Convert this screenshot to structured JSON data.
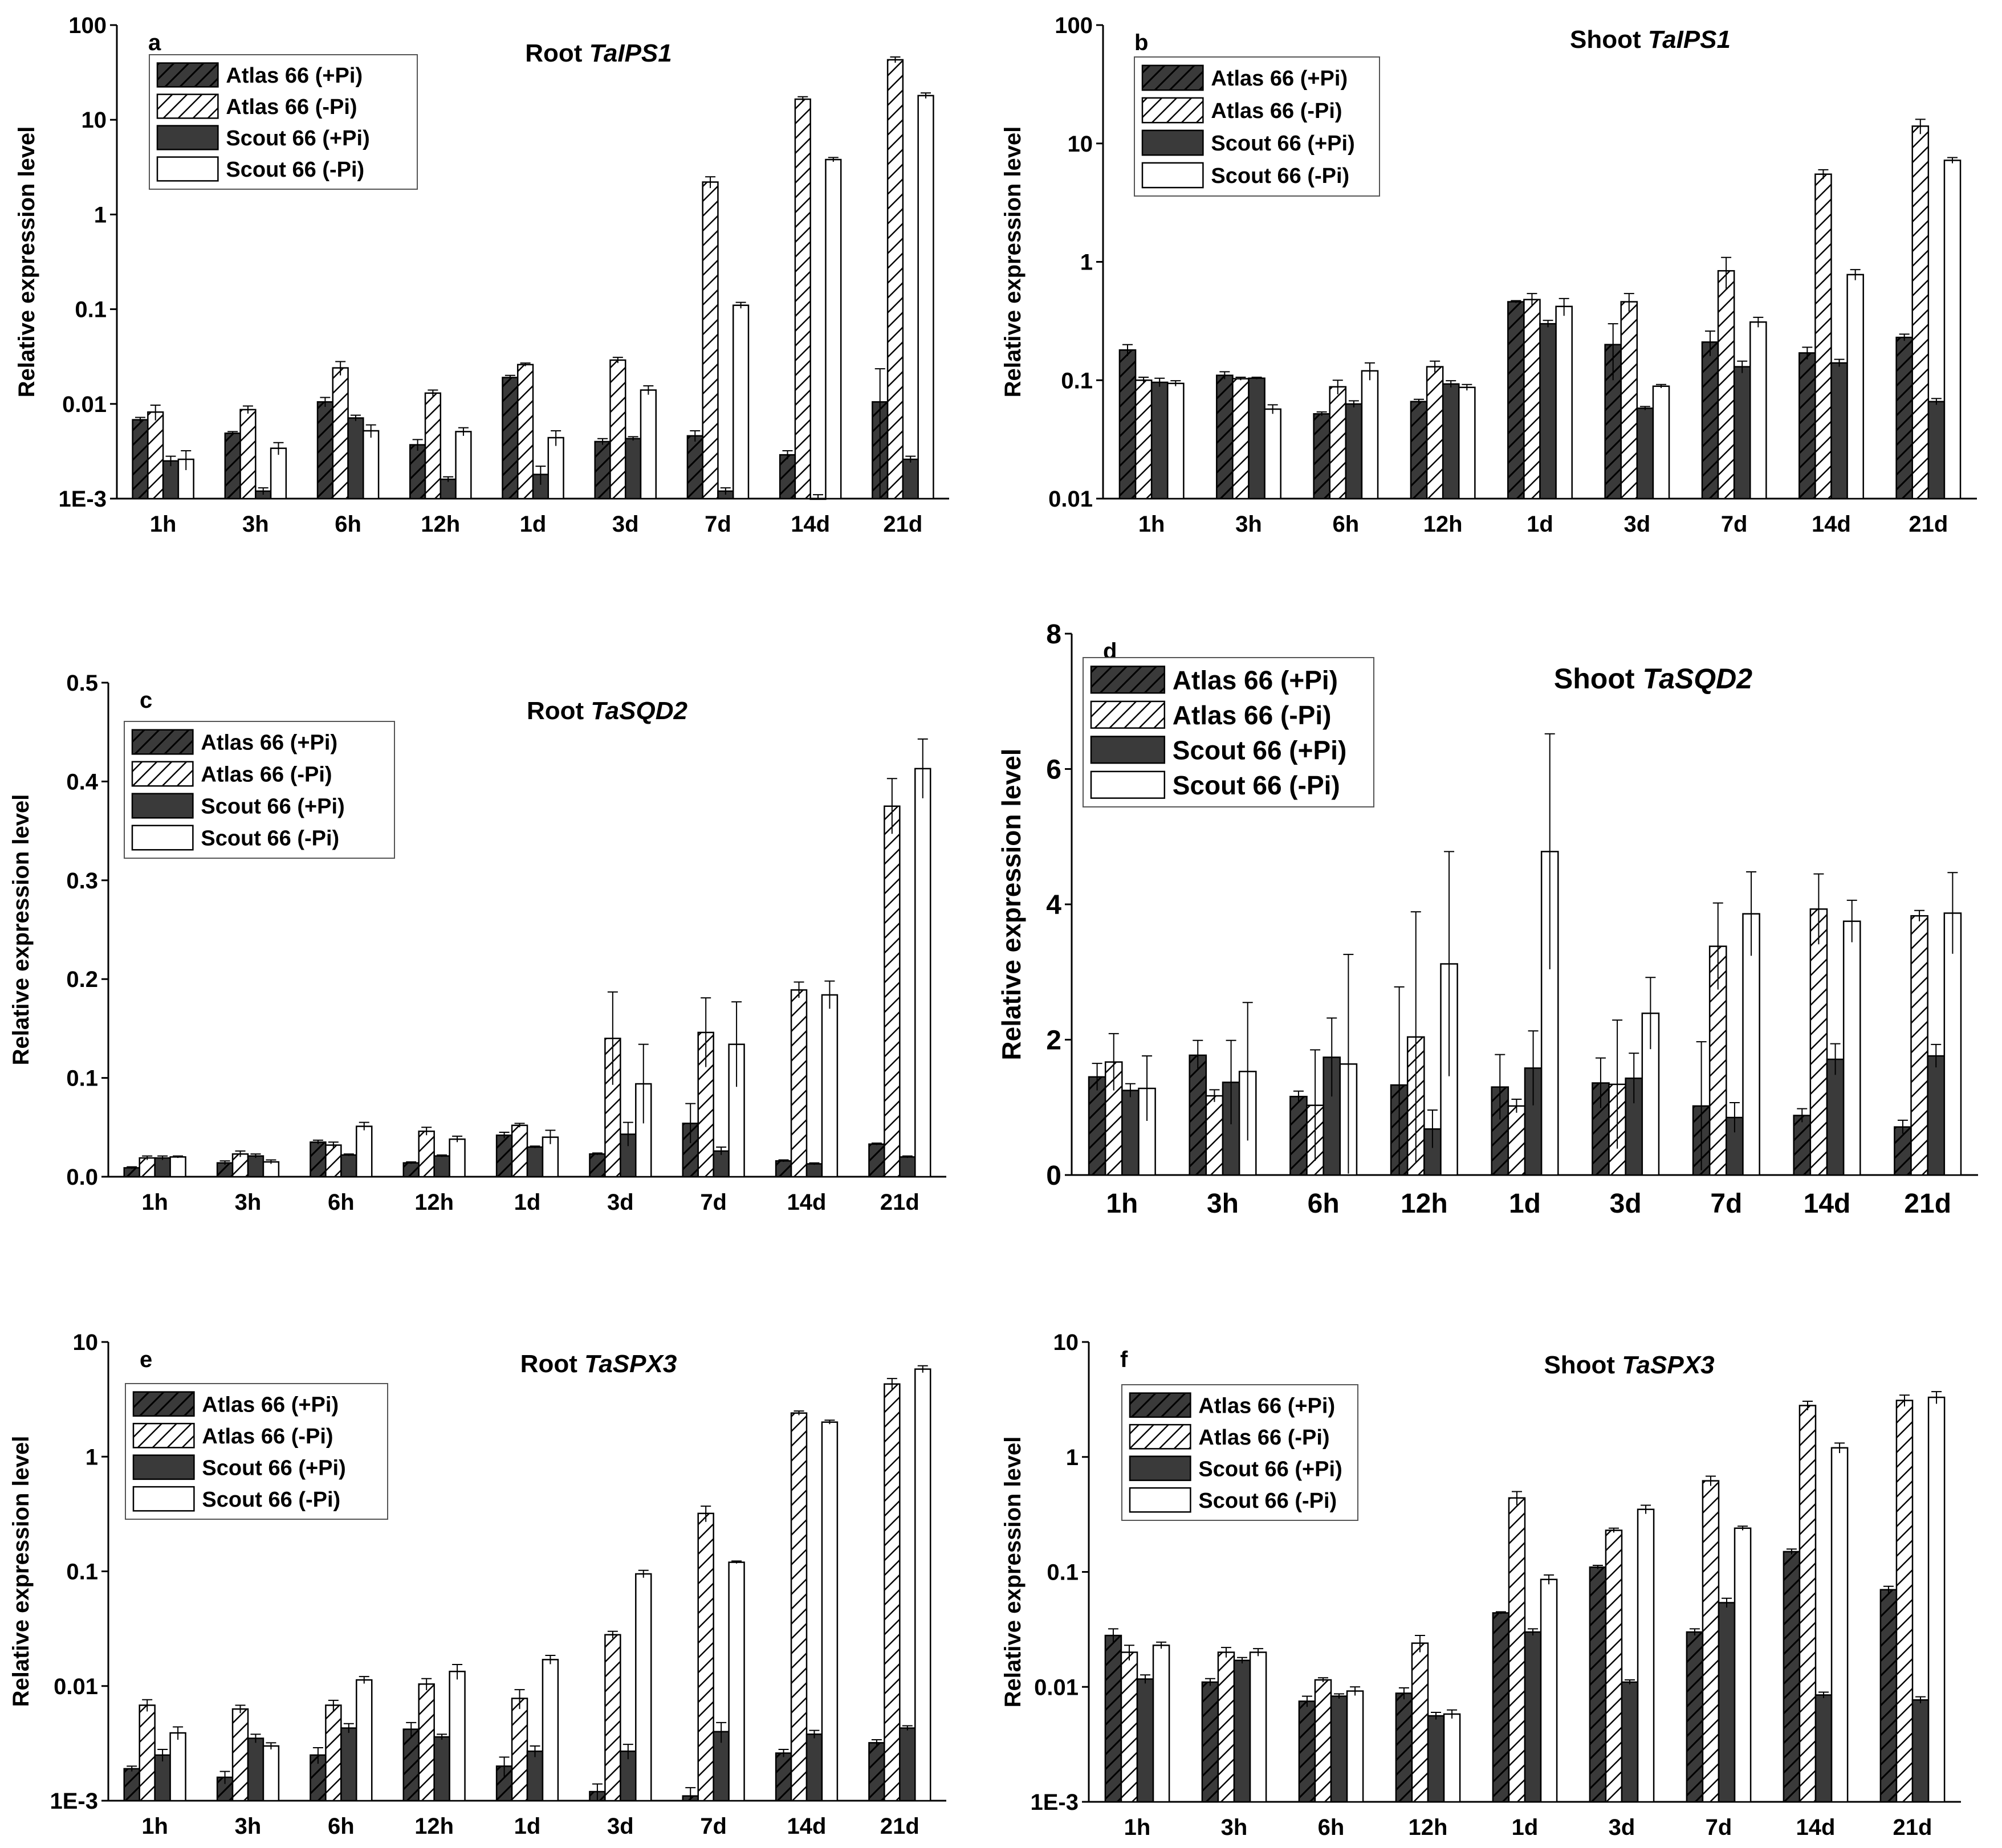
{
  "colors": {
    "dark": "#3a3a3a",
    "line": "#000000",
    "white": "#ffffff"
  },
  "series_names": [
    "Atlas 66 (+Pi)",
    "Atlas 66 (-Pi)",
    "Scout 66 (+Pi)",
    "Scout 66 (-Pi)"
  ],
  "categories": [
    "1h",
    "3h",
    "6h",
    "12h",
    "1d",
    "3d",
    "7d",
    "14d",
    "21d"
  ],
  "chart_data": [
    {
      "panel": "a",
      "type": "bar",
      "title_prefix": "Root ",
      "title_gene": "TaIPS1",
      "ylabel": "Relative expression level",
      "yscale": "log",
      "ylim": [
        0.001,
        100
      ],
      "yticks": [
        {
          "v": 0.001,
          "label": "1E-3"
        },
        {
          "v": 0.01,
          "label": "0.01"
        },
        {
          "v": 0.1,
          "label": "0.1"
        },
        {
          "v": 1,
          "label": "1"
        },
        {
          "v": 10,
          "label": "10"
        },
        {
          "v": 100,
          "label": "100"
        }
      ],
      "categories": [
        "1h",
        "3h",
        "6h",
        "12h",
        "1d",
        "3d",
        "7d",
        "14d",
        "21d"
      ],
      "legend": [
        "Atlas 66 (+Pi)",
        "Atlas 66 (-Pi)",
        "Scout 66 (+Pi)",
        "Scout 66 (-Pi)"
      ],
      "series": [
        {
          "name": "Atlas 66 (+Pi)",
          "values": [
            0.0068,
            0.0049,
            0.0105,
            0.0037,
            0.019,
            0.004,
            0.0046,
            0.0029,
            0.0105
          ],
          "err": [
            0.0004,
            0.0002,
            0.0012,
            0.0005,
            0.001,
            0.0003,
            0.0006,
            0.0003,
            0.013
          ]
        },
        {
          "name": "Atlas 66 (-Pi)",
          "values": [
            0.0082,
            0.0087,
            0.024,
            0.013,
            0.026,
            0.029,
            2.2,
            16.5,
            43
          ],
          "err": [
            0.0015,
            0.0008,
            0.004,
            0.001,
            0.001,
            0.002,
            0.3,
            1.0,
            3
          ]
        },
        {
          "name": "Scout 66 (+Pi)",
          "values": [
            0.0025,
            0.0012,
            0.0071,
            0.0016,
            0.0018,
            0.0043,
            0.0012,
            0.001,
            0.0026
          ],
          "err": [
            0.0003,
            0.0001,
            0.0005,
            0.0001,
            0.0004,
            0.0002,
            0.0001,
            0.0001,
            0.0002
          ]
        },
        {
          "name": "Scout 66 (-Pi)",
          "values": [
            0.0026,
            0.0034,
            0.0052,
            0.0051,
            0.0044,
            0.014,
            0.11,
            3.8,
            18
          ],
          "err": [
            0.0006,
            0.0005,
            0.0008,
            0.0005,
            0.0008,
            0.0015,
            0.008,
            0.2,
            1.2
          ]
        }
      ]
    },
    {
      "panel": "b",
      "type": "bar",
      "title_prefix": "Shoot ",
      "title_gene": "TaIPS1",
      "ylabel": "Relative expression level",
      "yscale": "log",
      "ylim": [
        0.01,
        100
      ],
      "yticks": [
        {
          "v": 0.01,
          "label": "0.01"
        },
        {
          "v": 0.1,
          "label": "0.1"
        },
        {
          "v": 1,
          "label": "1"
        },
        {
          "v": 10,
          "label": "10"
        },
        {
          "v": 100,
          "label": "100"
        }
      ],
      "categories": [
        "1h",
        "3h",
        "6h",
        "12h",
        "1d",
        "3d",
        "7d",
        "14d",
        "21d"
      ],
      "legend": [
        "Atlas 66 (+Pi)",
        "Atlas 66 (-Pi)",
        "Scout 66 (+Pi)",
        "Scout 66 (-Pi)"
      ],
      "series": [
        {
          "name": "Atlas 66 (+Pi)",
          "values": [
            0.18,
            0.11,
            0.052,
            0.066,
            0.46,
            0.2,
            0.21,
            0.17,
            0.23
          ],
          "err": [
            0.02,
            0.008,
            0.002,
            0.003,
            0.01,
            0.1,
            0.05,
            0.02,
            0.015
          ]
        },
        {
          "name": "Atlas 66 (-Pi)",
          "values": [
            0.1,
            0.103,
            0.088,
            0.13,
            0.48,
            0.46,
            0.84,
            5.5,
            14
          ],
          "err": [
            0.006,
            0.003,
            0.012,
            0.015,
            0.06,
            0.08,
            0.25,
            0.5,
            2
          ]
        },
        {
          "name": "Scout 66 (+Pi)",
          "values": [
            0.096,
            0.104,
            0.063,
            0.093,
            0.3,
            0.058,
            0.13,
            0.14,
            0.066
          ],
          "err": [
            0.008,
            0.002,
            0.004,
            0.006,
            0.02,
            0.002,
            0.015,
            0.01,
            0.004
          ]
        },
        {
          "name": "Scout 66 (-Pi)",
          "values": [
            0.094,
            0.057,
            0.12,
            0.087,
            0.42,
            0.089,
            0.31,
            0.78,
            7.2
          ],
          "err": [
            0.005,
            0.005,
            0.02,
            0.005,
            0.07,
            0.003,
            0.03,
            0.08,
            0.4
          ]
        }
      ]
    },
    {
      "panel": "c",
      "type": "bar",
      "title_prefix": "Root ",
      "title_gene": "TaSQD2",
      "ylabel": "Relative expression level",
      "yscale": "linear",
      "ylim": [
        0,
        0.5
      ],
      "yticks": [
        {
          "v": 0,
          "label": "0.0"
        },
        {
          "v": 0.1,
          "label": "0.1"
        },
        {
          "v": 0.2,
          "label": "0.2"
        },
        {
          "v": 0.3,
          "label": "0.3"
        },
        {
          "v": 0.4,
          "label": "0.4"
        },
        {
          "v": 0.5,
          "label": "0.5"
        }
      ],
      "categories": [
        "1h",
        "3h",
        "6h",
        "12h",
        "1d",
        "3d",
        "7d",
        "14d",
        "21d"
      ],
      "legend": [
        "Atlas 66 (+Pi)",
        "Atlas 66 (-Pi)",
        "Scout 66 (+Pi)",
        "Scout 66 (-Pi)"
      ],
      "series": [
        {
          "name": "Atlas 66 (+Pi)",
          "values": [
            0.009,
            0.014,
            0.035,
            0.014,
            0.042,
            0.023,
            0.054,
            0.016,
            0.033
          ],
          "err": [
            0.001,
            0.002,
            0.002,
            0.001,
            0.003,
            0.001,
            0.02,
            0.001,
            0.001
          ]
        },
        {
          "name": "Atlas 66 (-Pi)",
          "values": [
            0.019,
            0.023,
            0.032,
            0.046,
            0.052,
            0.14,
            0.146,
            0.189,
            0.375
          ],
          "err": [
            0.002,
            0.003,
            0.003,
            0.004,
            0.002,
            0.047,
            0.035,
            0.008,
            0.028
          ]
        },
        {
          "name": "Scout 66 (+Pi)",
          "values": [
            0.019,
            0.021,
            0.022,
            0.021,
            0.03,
            0.043,
            0.026,
            0.013,
            0.02
          ],
          "err": [
            0.002,
            0.002,
            0.001,
            0.001,
            0.001,
            0.012,
            0.004,
            0.001,
            0.001
          ]
        },
        {
          "name": "Scout 66 (-Pi)",
          "values": [
            0.02,
            0.015,
            0.051,
            0.038,
            0.04,
            0.094,
            0.134,
            0.184,
            0.413
          ],
          "err": [
            0.001,
            0.002,
            0.004,
            0.003,
            0.007,
            0.04,
            0.043,
            0.014,
            0.03
          ]
        }
      ]
    },
    {
      "panel": "d",
      "type": "bar",
      "title_prefix": "Shoot ",
      "title_gene": "TaSQD2",
      "ylabel": "Relative expression level",
      "yscale": "linear",
      "ylim": [
        0,
        8
      ],
      "yticks": [
        {
          "v": 0,
          "label": "0"
        },
        {
          "v": 2,
          "label": "2"
        },
        {
          "v": 4,
          "label": "4"
        },
        {
          "v": 6,
          "label": "6"
        },
        {
          "v": 8,
          "label": "8"
        }
      ],
      "categories": [
        "1h",
        "3h",
        "6h",
        "12h",
        "1d",
        "3d",
        "7d",
        "14d",
        "21d"
      ],
      "legend": [
        "Atlas 66 (+Pi)",
        "Atlas 66 (-Pi)",
        "Scout 66 (+Pi)",
        "Scout 66 (-Pi)"
      ],
      "series": [
        {
          "name": "Atlas 66 (+Pi)",
          "values": [
            1.45,
            1.77,
            1.16,
            1.33,
            1.3,
            1.36,
            1.02,
            0.88,
            0.71
          ],
          "err": [
            0.2,
            0.22,
            0.08,
            1.45,
            0.48,
            0.37,
            0.95,
            0.1,
            0.1
          ]
        },
        {
          "name": "Atlas 66 (-Pi)",
          "values": [
            1.67,
            1.17,
            1.03,
            2.04,
            1.02,
            1.34,
            3.38,
            3.93,
            3.83
          ],
          "err": [
            0.42,
            0.09,
            0.82,
            1.85,
            0.1,
            0.95,
            0.64,
            0.52,
            0.08
          ]
        },
        {
          "name": "Scout 66 (+Pi)",
          "values": [
            1.25,
            1.37,
            1.74,
            0.68,
            1.58,
            1.43,
            0.85,
            1.71,
            1.76
          ],
          "err": [
            0.1,
            0.62,
            0.58,
            0.28,
            0.55,
            0.37,
            0.22,
            0.23,
            0.17
          ]
        },
        {
          "name": "Scout 66 (-Pi)",
          "values": [
            1.28,
            1.53,
            1.64,
            3.12,
            4.78,
            2.39,
            3.86,
            3.75,
            3.87
          ],
          "err": [
            0.48,
            1.02,
            1.62,
            1.66,
            1.74,
            0.53,
            0.62,
            0.31,
            0.6
          ]
        }
      ]
    },
    {
      "panel": "e",
      "type": "bar",
      "title_prefix": "Root ",
      "title_gene": "TaSPX3",
      "ylabel": "Relative expression level",
      "yscale": "log",
      "ylim": [
        0.001,
        10
      ],
      "yticks": [
        {
          "v": 0.001,
          "label": "1E-3"
        },
        {
          "v": 0.01,
          "label": "0.01"
        },
        {
          "v": 0.1,
          "label": "0.1"
        },
        {
          "v": 1,
          "label": "1"
        },
        {
          "v": 10,
          "label": "10"
        }
      ],
      "categories": [
        "1h",
        "3h",
        "6h",
        "12h",
        "1d",
        "3d",
        "7d",
        "14d",
        "21d"
      ],
      "legend": [
        "Atlas 66 (+Pi)",
        "Atlas 66 (-Pi)",
        "Scout 66 (+Pi)",
        "Scout 66 (-Pi)"
      ],
      "series": [
        {
          "name": "Atlas 66 (+Pi)",
          "values": [
            0.0019,
            0.0016,
            0.0025,
            0.0042,
            0.002,
            0.0012,
            0.0011,
            0.0026,
            0.0032
          ],
          "err": [
            0.0001,
            0.0002,
            0.0004,
            0.0006,
            0.0004,
            0.0002,
            0.0002,
            0.0002,
            0.0002
          ]
        },
        {
          "name": "Atlas 66 (-Pi)",
          "values": [
            0.0068,
            0.0063,
            0.0068,
            0.0104,
            0.0078,
            0.028,
            0.32,
            2.4,
            4.3
          ],
          "err": [
            0.0008,
            0.0005,
            0.0007,
            0.0012,
            0.0015,
            0.002,
            0.05,
            0.1,
            0.5
          ]
        },
        {
          "name": "Scout 66 (+Pi)",
          "values": [
            0.0025,
            0.0035,
            0.0043,
            0.0036,
            0.0027,
            0.0027,
            0.004,
            0.0038,
            0.0043
          ],
          "err": [
            0.0003,
            0.0003,
            0.0004,
            0.0002,
            0.0003,
            0.0004,
            0.0008,
            0.0003,
            0.0002
          ]
        },
        {
          "name": "Scout 66 (-Pi)",
          "values": [
            0.0039,
            0.003,
            0.0113,
            0.0134,
            0.017,
            0.095,
            0.12,
            2.0,
            5.8
          ],
          "err": [
            0.0005,
            0.0002,
            0.0008,
            0.002,
            0.0015,
            0.007,
            0.003,
            0.08,
            0.4
          ]
        }
      ]
    },
    {
      "panel": "f",
      "type": "bar",
      "title_prefix": "Shoot ",
      "title_gene": "TaSPX3",
      "ylabel": "Relative expression level",
      "yscale": "log",
      "ylim": [
        0.001,
        10
      ],
      "yticks": [
        {
          "v": 0.001,
          "label": "1E-3"
        },
        {
          "v": 0.01,
          "label": "0.01"
        },
        {
          "v": 0.1,
          "label": "0.1"
        },
        {
          "v": 1,
          "label": "1"
        },
        {
          "v": 10,
          "label": "10"
        }
      ],
      "categories": [
        "1h",
        "3h",
        "6h",
        "12h",
        "1d",
        "3d",
        "7d",
        "14d",
        "21d"
      ],
      "legend": [
        "Atlas 66 (+Pi)",
        "Atlas 66 (-Pi)",
        "Scout 66 (+Pi)",
        "Scout 66 (-Pi)"
      ],
      "series": [
        {
          "name": "Atlas 66 (+Pi)",
          "values": [
            0.028,
            0.011,
            0.0075,
            0.0088,
            0.044,
            0.11,
            0.03,
            0.15,
            0.07
          ],
          "err": [
            0.004,
            0.0008,
            0.0008,
            0.001,
            0.001,
            0.004,
            0.002,
            0.008,
            0.005
          ]
        },
        {
          "name": "Atlas 66 (-Pi)",
          "values": [
            0.02,
            0.02,
            0.0115,
            0.024,
            0.44,
            0.23,
            0.62,
            2.8,
            3.1
          ],
          "err": [
            0.003,
            0.002,
            0.0005,
            0.004,
            0.06,
            0.01,
            0.06,
            0.25,
            0.35
          ]
        },
        {
          "name": "Scout 66 (+Pi)",
          "values": [
            0.0117,
            0.017,
            0.0083,
            0.0056,
            0.03,
            0.011,
            0.054,
            0.0085,
            0.0077
          ],
          "err": [
            0.001,
            0.001,
            0.0004,
            0.0004,
            0.002,
            0.0005,
            0.005,
            0.0005,
            0.0005
          ]
        },
        {
          "name": "Scout 66 (-Pi)",
          "values": [
            0.023,
            0.02,
            0.0092,
            0.0058,
            0.086,
            0.35,
            0.24,
            1.2,
            3.3
          ],
          "err": [
            0.0015,
            0.0015,
            0.0008,
            0.0005,
            0.008,
            0.03,
            0.01,
            0.12,
            0.4
          ]
        }
      ]
    }
  ]
}
